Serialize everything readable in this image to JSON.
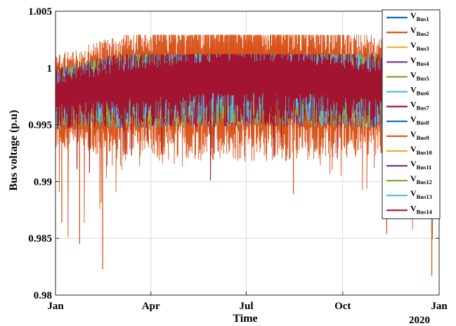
{
  "chart_data": {
    "type": "line",
    "xlabel": "Time",
    "ylabel": "Bus voltage (p.u)",
    "ylim": [
      0.98,
      1.005
    ],
    "y_ticks": [
      "0.98",
      "0.985",
      "0.99",
      "0.995",
      "1",
      "1.005"
    ],
    "y_tick_values": [
      0.98,
      0.985,
      0.99,
      0.995,
      1.0,
      1.005
    ],
    "x_ticks": [
      "Jan",
      "Apr",
      "Jul",
      "Oct",
      "Jan"
    ],
    "x_tick_values": [
      "2020-01-01",
      "2020-04-01",
      "2020-07-01",
      "2020-10-01",
      "2021-01-01"
    ],
    "x_year_label": "2020",
    "xlim": [
      "2020-01-01",
      "2021-01-01"
    ],
    "grid": true,
    "legend_position": "top-right",
    "legend_prefix": "V",
    "series": [
      {
        "name": "Bus1",
        "color": "#0072BD"
      },
      {
        "name": "Bus2",
        "color": "#D95319"
      },
      {
        "name": "Bus3",
        "color": "#EDB120"
      },
      {
        "name": "Bus4",
        "color": "#7E2F8E"
      },
      {
        "name": "Bus5",
        "color": "#77AC30"
      },
      {
        "name": "Bus6",
        "color": "#4DBEEE"
      },
      {
        "name": "Bus7",
        "color": "#A2142F"
      },
      {
        "name": "Bus8",
        "color": "#0072BD"
      },
      {
        "name": "Bus9",
        "color": "#D95319"
      },
      {
        "name": "Bus10",
        "color": "#EDB120"
      },
      {
        "name": "Bus11",
        "color": "#7E2F8E"
      },
      {
        "name": "Bus12",
        "color": "#77AC30"
      },
      {
        "name": "Bus13",
        "color": "#4DBEEE"
      },
      {
        "name": "Bus14",
        "color": "#A2142F"
      }
    ],
    "series_note_values": {
      "typical_band": [
        0.9965,
        1.0005
      ],
      "max_value": 1.0029,
      "min_value": 0.9817,
      "representative_low_points": [
        {
          "date": "2020-01-07",
          "value": 0.9864
        },
        {
          "date": "2020-01-24",
          "value": 0.9845
        },
        {
          "date": "2020-02-15",
          "value": 0.9823
        },
        {
          "date": "2020-08-15",
          "value": 0.9889
        },
        {
          "date": "2020-11-12",
          "value": 0.9854
        },
        {
          "date": "2020-12-25",
          "value": 0.9817
        }
      ]
    }
  }
}
